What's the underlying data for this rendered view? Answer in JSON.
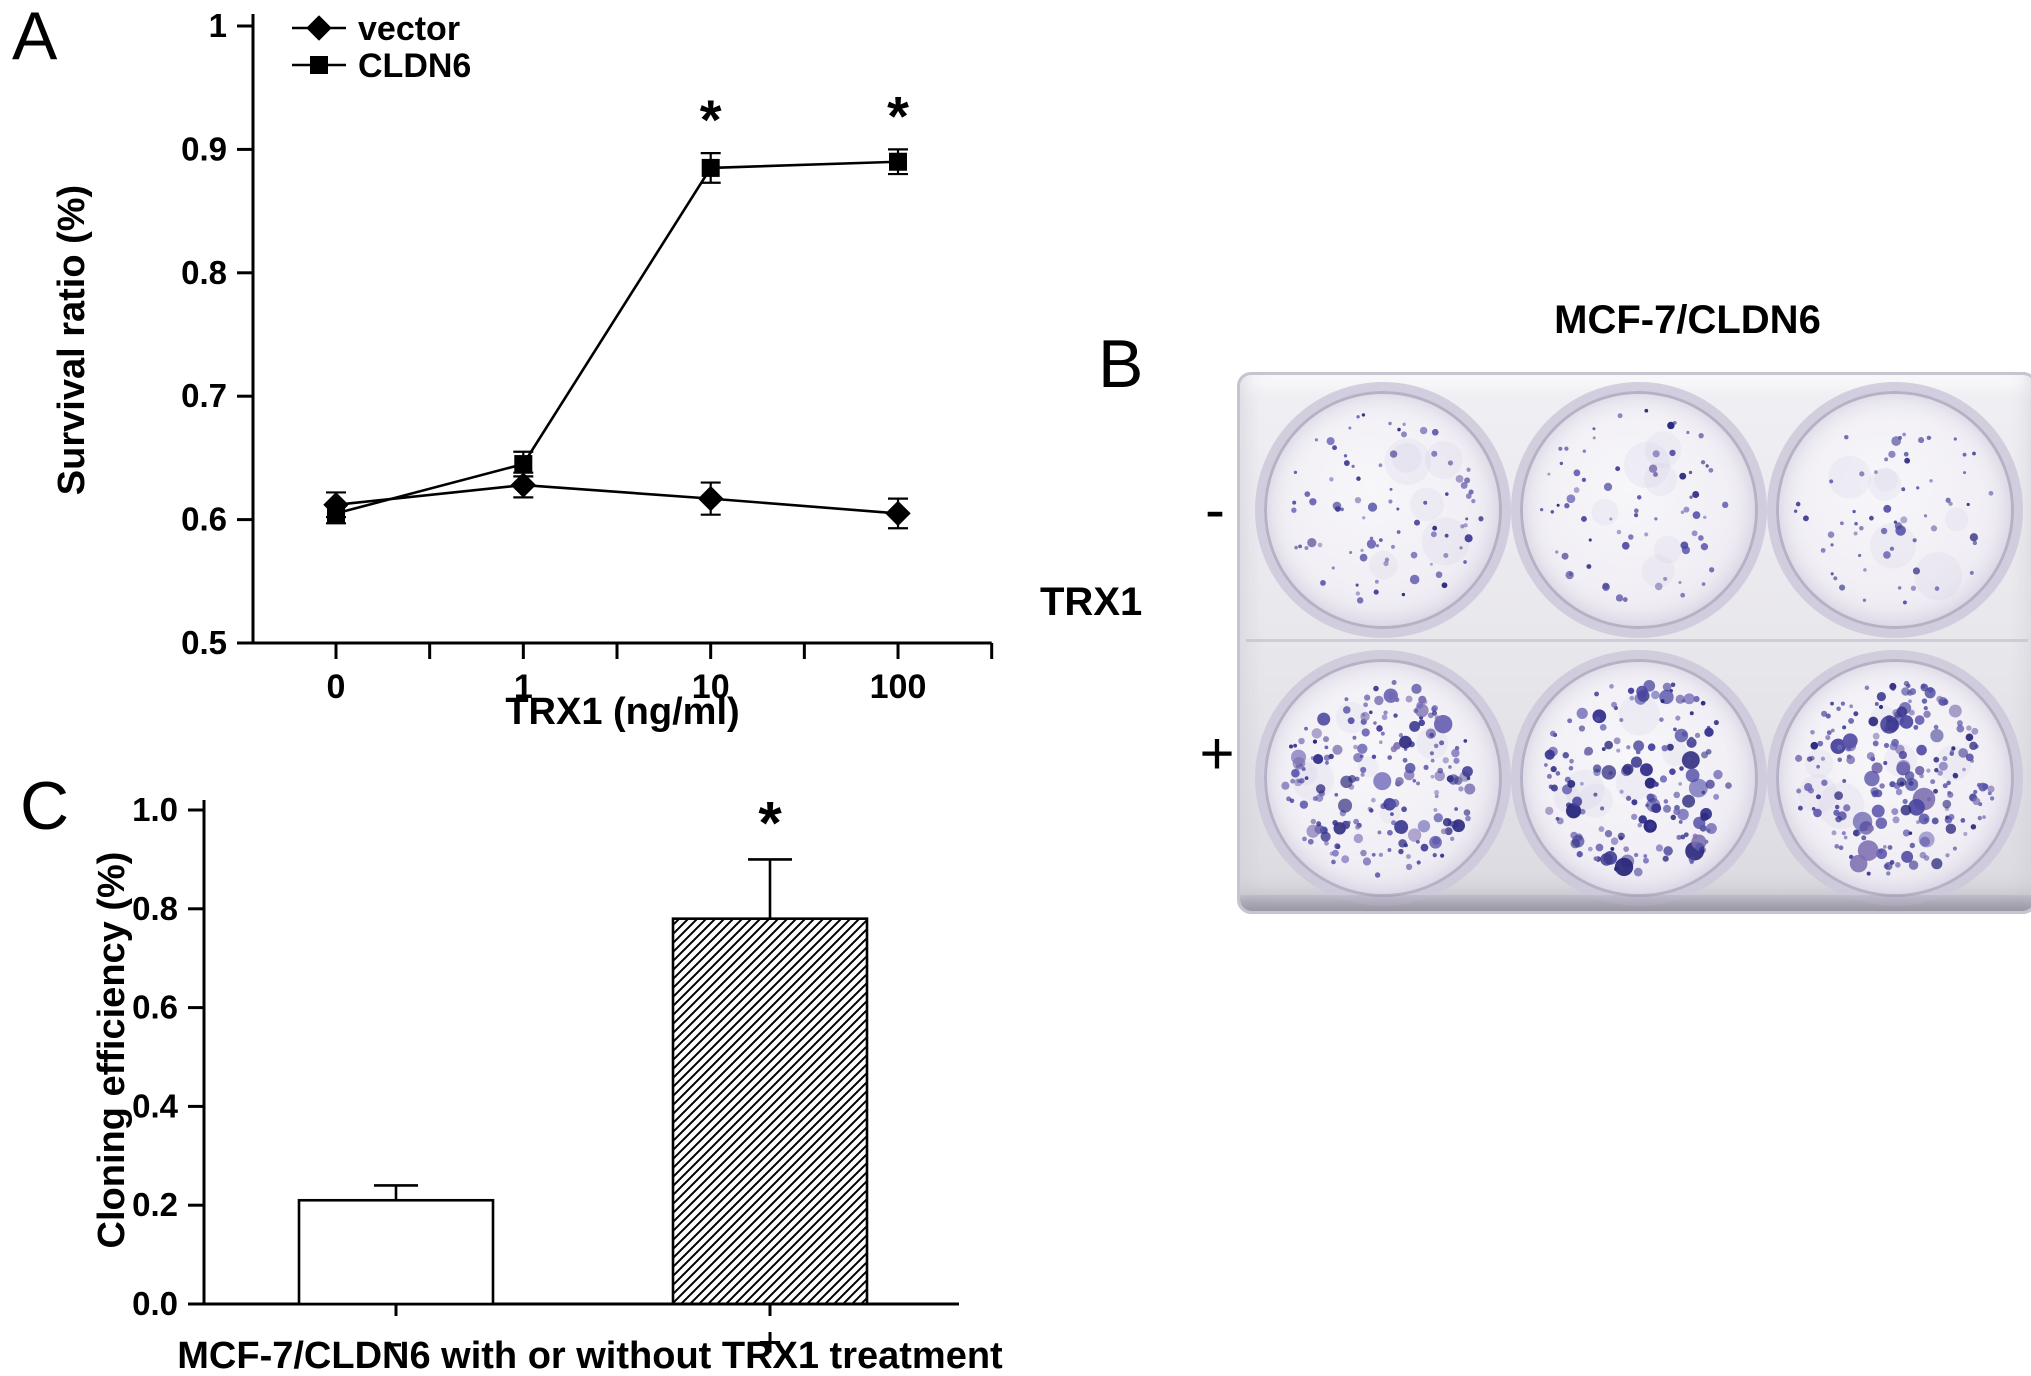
{
  "panel_a": {
    "label": "A"
  },
  "panel_b": {
    "label": "B",
    "title": "MCF-7/CLDN6",
    "treatment_label": "TRX1",
    "row_labels": [
      "-",
      "+"
    ],
    "stain_color": "#3b3890",
    "wells": [
      {
        "row": "-",
        "colonies": 85
      },
      {
        "row": "-",
        "colonies": 70
      },
      {
        "row": "-",
        "colonies": 62
      },
      {
        "row": "+",
        "colonies": 200
      },
      {
        "row": "+",
        "colonies": 175
      },
      {
        "row": "+",
        "colonies": 215
      }
    ]
  },
  "panel_c": {
    "label": "C"
  },
  "chart_data": [
    {
      "type": "line",
      "panel": "A",
      "title": "",
      "xlabel": "TRX1 (ng/ml)",
      "ylabel": "Survival ratio (%)",
      "x_categories": [
        "0",
        "1",
        "10",
        "100"
      ],
      "ylim": [
        0.5,
        1.0
      ],
      "yticks": [
        1.0,
        0.9,
        0.8,
        0.7,
        0.6,
        0.5
      ],
      "ytick_labels": [
        "1",
        "0.9",
        "0.8",
        "0.7",
        "0.6",
        "0.5"
      ],
      "grid": false,
      "legend_position": "top-left",
      "series": [
        {
          "name": "vector",
          "marker": "diamond",
          "values": [
            0.612,
            0.628,
            0.617,
            0.605
          ],
          "errors": [
            0.01,
            0.01,
            0.013,
            0.012
          ]
        },
        {
          "name": "CLDN6",
          "marker": "square",
          "values": [
            0.605,
            0.645,
            0.885,
            0.89
          ],
          "errors": [
            0.008,
            0.01,
            0.012,
            0.01
          ]
        }
      ],
      "annotations": [
        {
          "text": "*",
          "series": "CLDN6",
          "x_index": 2
        },
        {
          "text": "*",
          "series": "CLDN6",
          "x_index": 3
        }
      ]
    },
    {
      "type": "bar",
      "panel": "C",
      "title": "",
      "xlabel": "MCF-7/CLDN6 with or without TRX1 treatment",
      "ylabel": "Cloning efficiency (%)",
      "categories": [
        "-",
        "+"
      ],
      "values": [
        0.21,
        0.78
      ],
      "errors": [
        0.03,
        0.12
      ],
      "ylim": [
        0.0,
        1.0
      ],
      "yticks": [
        0.0,
        0.2,
        0.4,
        0.6,
        0.8,
        1.0
      ],
      "ytick_labels": [
        "0.0",
        "0.2",
        "0.4",
        "0.6",
        "0.8",
        "1.0"
      ],
      "grid": false,
      "bar_styles": [
        "white",
        "hatched"
      ],
      "annotations": [
        {
          "text": "*",
          "x_index": 1
        }
      ]
    }
  ]
}
